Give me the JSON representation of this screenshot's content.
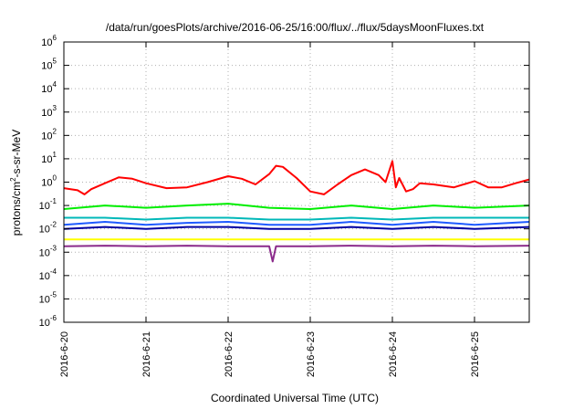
{
  "chart_data": {
    "type": "line",
    "title": "/data/run/goesPlots/archive/2016-06-25/16:00/flux/../flux/5daysMoonFluxes.txt",
    "xlabel": "Coordinated Universal Time (UTC)",
    "ylabel_parts": {
      "prefix": "protons/cm",
      "sup": "2",
      "suffix": "-s-sr-MeV"
    },
    "y_scale": "log",
    "ylim": [
      1e-06,
      1000000.0
    ],
    "y_ticks": [
      {
        "value": 1e-06,
        "base": "10",
        "exp": "-6"
      },
      {
        "value": 1e-05,
        "base": "10",
        "exp": "-5"
      },
      {
        "value": 0.0001,
        "base": "10",
        "exp": "-4"
      },
      {
        "value": 0.001,
        "base": "10",
        "exp": "-3"
      },
      {
        "value": 0.01,
        "base": "10",
        "exp": "-2"
      },
      {
        "value": 0.1,
        "base": "10",
        "exp": "-1"
      },
      {
        "value": 1,
        "base": "10",
        "exp": "0"
      },
      {
        "value": 10,
        "base": "10",
        "exp": "1"
      },
      {
        "value": 100,
        "base": "10",
        "exp": "2"
      },
      {
        "value": 1000,
        "base": "10",
        "exp": "3"
      },
      {
        "value": 10000,
        "base": "10",
        "exp": "4"
      },
      {
        "value": 100000,
        "base": "10",
        "exp": "5"
      },
      {
        "value": 1000000,
        "base": "10",
        "exp": "6"
      }
    ],
    "xlim": [
      "2016-06-20T00:00",
      "2016-06-25T16:00"
    ],
    "x_ticks": [
      {
        "value": "2016-06-20T00:00",
        "label": "2016-6-20"
      },
      {
        "value": "2016-06-21T00:00",
        "label": "2016-6-21"
      },
      {
        "value": "2016-06-22T00:00",
        "label": "2016-6-22"
      },
      {
        "value": "2016-06-23T00:00",
        "label": "2016-6-23"
      },
      {
        "value": "2016-06-24T00:00",
        "label": "2016-6-24"
      },
      {
        "value": "2016-06-25T00:00",
        "label": "2016-6-25"
      }
    ],
    "grid": true,
    "series": [
      {
        "color": "#ff0000",
        "values": [
          [
            "2016-06-20T00:00",
            0.55
          ],
          [
            "2016-06-20T04:00",
            0.45
          ],
          [
            "2016-06-20T06:00",
            0.3
          ],
          [
            "2016-06-20T08:00",
            0.5
          ],
          [
            "2016-06-20T12:00",
            0.9
          ],
          [
            "2016-06-20T16:00",
            1.6
          ],
          [
            "2016-06-20T20:00",
            1.4
          ],
          [
            "2016-06-21T00:00",
            0.9
          ],
          [
            "2016-06-21T06:00",
            0.55
          ],
          [
            "2016-06-21T12:00",
            0.6
          ],
          [
            "2016-06-21T18:00",
            1.0
          ],
          [
            "2016-06-22T00:00",
            1.8
          ],
          [
            "2016-06-22T04:00",
            1.4
          ],
          [
            "2016-06-22T08:00",
            0.8
          ],
          [
            "2016-06-22T12:00",
            2.2
          ],
          [
            "2016-06-22T14:00",
            5.0
          ],
          [
            "2016-06-22T16:00",
            4.5
          ],
          [
            "2016-06-22T20:00",
            1.5
          ],
          [
            "2016-06-23T00:00",
            0.4
          ],
          [
            "2016-06-23T04:00",
            0.3
          ],
          [
            "2016-06-23T08:00",
            0.8
          ],
          [
            "2016-06-23T12:00",
            2.0
          ],
          [
            "2016-06-23T16:00",
            3.5
          ],
          [
            "2016-06-23T20:00",
            2.0
          ],
          [
            "2016-06-23T22:00",
            1.0
          ],
          [
            "2016-06-24T00:00",
            8.0
          ],
          [
            "2016-06-24T01:00",
            0.6
          ],
          [
            "2016-06-24T02:00",
            1.5
          ],
          [
            "2016-06-24T04:00",
            0.4
          ],
          [
            "2016-06-24T06:00",
            0.5
          ],
          [
            "2016-06-24T08:00",
            0.9
          ],
          [
            "2016-06-24T12:00",
            0.8
          ],
          [
            "2016-06-24T18:00",
            0.6
          ],
          [
            "2016-06-25T00:00",
            1.1
          ],
          [
            "2016-06-25T04:00",
            0.6
          ],
          [
            "2016-06-25T08:00",
            0.6
          ],
          [
            "2016-06-25T12:00",
            0.9
          ],
          [
            "2016-06-25T16:00",
            1.3
          ]
        ]
      },
      {
        "color": "#00ee00",
        "values": [
          [
            "2016-06-20T00:00",
            0.07
          ],
          [
            "2016-06-20T12:00",
            0.1
          ],
          [
            "2016-06-21T00:00",
            0.08
          ],
          [
            "2016-06-21T12:00",
            0.1
          ],
          [
            "2016-06-22T00:00",
            0.12
          ],
          [
            "2016-06-22T12:00",
            0.08
          ],
          [
            "2016-06-23T00:00",
            0.07
          ],
          [
            "2016-06-23T12:00",
            0.1
          ],
          [
            "2016-06-24T00:00",
            0.07
          ],
          [
            "2016-06-24T12:00",
            0.1
          ],
          [
            "2016-06-25T00:00",
            0.08
          ],
          [
            "2016-06-25T16:00",
            0.1
          ]
        ]
      },
      {
        "color": "#00b8b8",
        "values": [
          [
            "2016-06-20T00:00",
            0.03
          ],
          [
            "2016-06-20T12:00",
            0.03
          ],
          [
            "2016-06-21T00:00",
            0.025
          ],
          [
            "2016-06-21T12:00",
            0.03
          ],
          [
            "2016-06-22T00:00",
            0.03
          ],
          [
            "2016-06-22T12:00",
            0.025
          ],
          [
            "2016-06-23T00:00",
            0.025
          ],
          [
            "2016-06-23T12:00",
            0.03
          ],
          [
            "2016-06-24T00:00",
            0.025
          ],
          [
            "2016-06-24T12:00",
            0.03
          ],
          [
            "2016-06-25T00:00",
            0.03
          ],
          [
            "2016-06-25T16:00",
            0.03
          ]
        ]
      },
      {
        "color": "#1e5bff",
        "values": [
          [
            "2016-06-20T00:00",
            0.015
          ],
          [
            "2016-06-20T12:00",
            0.02
          ],
          [
            "2016-06-21T00:00",
            0.015
          ],
          [
            "2016-06-21T12:00",
            0.018
          ],
          [
            "2016-06-22T00:00",
            0.02
          ],
          [
            "2016-06-22T12:00",
            0.015
          ],
          [
            "2016-06-23T00:00",
            0.015
          ],
          [
            "2016-06-23T12:00",
            0.02
          ],
          [
            "2016-06-24T00:00",
            0.015
          ],
          [
            "2016-06-24T12:00",
            0.02
          ],
          [
            "2016-06-25T00:00",
            0.015
          ],
          [
            "2016-06-25T16:00",
            0.02
          ]
        ]
      },
      {
        "color": "#0000a0",
        "values": [
          [
            "2016-06-20T00:00",
            0.01
          ],
          [
            "2016-06-20T12:00",
            0.012
          ],
          [
            "2016-06-21T00:00",
            0.01
          ],
          [
            "2016-06-21T12:00",
            0.012
          ],
          [
            "2016-06-22T00:00",
            0.012
          ],
          [
            "2016-06-22T12:00",
            0.01
          ],
          [
            "2016-06-23T00:00",
            0.01
          ],
          [
            "2016-06-23T12:00",
            0.012
          ],
          [
            "2016-06-24T00:00",
            0.01
          ],
          [
            "2016-06-24T12:00",
            0.012
          ],
          [
            "2016-06-25T00:00",
            0.01
          ],
          [
            "2016-06-25T16:00",
            0.012
          ]
        ]
      },
      {
        "color": "#ffff00",
        "values": [
          [
            "2016-06-20T00:00",
            0.0035
          ],
          [
            "2016-06-21T00:00",
            0.0035
          ],
          [
            "2016-06-22T00:00",
            0.0035
          ],
          [
            "2016-06-23T00:00",
            0.0035
          ],
          [
            "2016-06-24T00:00",
            0.0035
          ],
          [
            "2016-06-25T00:00",
            0.0035
          ],
          [
            "2016-06-25T16:00",
            0.0035
          ]
        ]
      },
      {
        "color": "#8b2b8b",
        "values": [
          [
            "2016-06-20T00:00",
            0.0018
          ],
          [
            "2016-06-20T12:00",
            0.0019
          ],
          [
            "2016-06-21T00:00",
            0.0018
          ],
          [
            "2016-06-21T12:00",
            0.0019
          ],
          [
            "2016-06-22T00:00",
            0.0018
          ],
          [
            "2016-06-22T12:00",
            0.0018
          ],
          [
            "2016-06-22T13:00",
            0.0004
          ],
          [
            "2016-06-22T14:00",
            0.0018
          ],
          [
            "2016-06-23T00:00",
            0.0018
          ],
          [
            "2016-06-23T12:00",
            0.0019
          ],
          [
            "2016-06-24T00:00",
            0.0018
          ],
          [
            "2016-06-24T12:00",
            0.0019
          ],
          [
            "2016-06-25T00:00",
            0.0018
          ],
          [
            "2016-06-25T16:00",
            0.0019
          ]
        ]
      }
    ]
  }
}
